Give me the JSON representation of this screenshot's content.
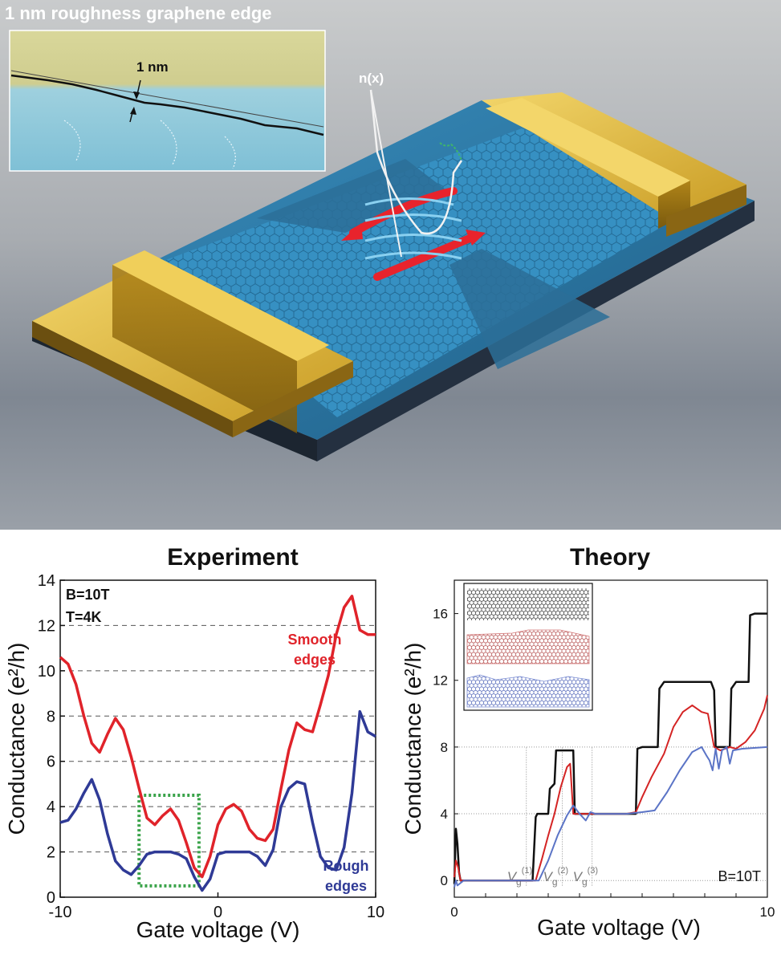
{
  "figure": {
    "inset_title": "1 nm roughness graphene edge",
    "inset_scale_label": "1 nm",
    "density_label": "n(x)"
  },
  "colors": {
    "smooth": "#e0232a",
    "rough": "#2f3a96",
    "theory_black": "#111111",
    "theory_red": "#d42424",
    "theory_blue": "#5b74c6",
    "gold": "#d9b63a",
    "graphene": "#2a7fae",
    "box_green": "#3aa34a"
  },
  "chart_data": [
    {
      "type": "line",
      "title": "Experiment",
      "xlabel": "Gate voltage (V)",
      "ylabel": "Conductance (e²/h)",
      "xlim": [
        -10,
        10
      ],
      "ylim": [
        0,
        14
      ],
      "x_ticks": [
        "-10",
        "0",
        "10"
      ],
      "y_ticks": [
        "0",
        "2",
        "4",
        "6",
        "8",
        "10",
        "12",
        "14"
      ],
      "grid": "dashed horizontal",
      "annotations": [
        "B=10T",
        "T=4K"
      ],
      "series": [
        {
          "name": "Smooth edges",
          "label_lines": [
            "Smooth",
            "edges"
          ],
          "x": [
            -10,
            -9.5,
            -9,
            -8.5,
            -8,
            -7.5,
            -7,
            -6.5,
            -6,
            -5.5,
            -5,
            -4.5,
            -4,
            -3.5,
            -3,
            -2.5,
            -2,
            -1.5,
            -1,
            -0.5,
            0,
            0.5,
            1,
            1.5,
            2,
            2.5,
            3,
            3.5,
            4,
            4.5,
            5,
            5.5,
            6,
            6.5,
            7,
            7.5,
            8,
            8.5,
            9,
            9.5,
            10
          ],
          "values": [
            10.6,
            10.3,
            9.4,
            8.0,
            6.8,
            6.4,
            7.2,
            7.9,
            7.4,
            6.2,
            4.8,
            3.5,
            3.2,
            3.6,
            3.9,
            3.4,
            2.4,
            1.3,
            0.9,
            1.8,
            3.2,
            3.9,
            4.1,
            3.8,
            3.0,
            2.6,
            2.5,
            3.0,
            4.8,
            6.5,
            7.7,
            7.4,
            7.3,
            8.5,
            9.8,
            11.6,
            12.8,
            13.3,
            11.8,
            11.6,
            11.6
          ]
        },
        {
          "name": "Rough edges",
          "label_lines": [
            "Rough",
            "edges"
          ],
          "x": [
            -10,
            -9.5,
            -9,
            -8.5,
            -8,
            -7.5,
            -7,
            -6.5,
            -6,
            -5.5,
            -5,
            -4.5,
            -4,
            -3.5,
            -3,
            -2.5,
            -2,
            -1.5,
            -1,
            -0.5,
            0,
            0.5,
            1,
            1.5,
            2,
            2.5,
            3,
            3.5,
            4,
            4.5,
            5,
            5.5,
            6,
            6.5,
            7,
            7.5,
            8,
            8.5,
            9,
            9.5,
            10
          ],
          "values": [
            3.3,
            3.4,
            3.9,
            4.6,
            5.2,
            4.3,
            2.8,
            1.6,
            1.2,
            1.0,
            1.4,
            1.9,
            2.0,
            2.0,
            2.0,
            1.9,
            1.7,
            0.9,
            0.3,
            0.8,
            1.9,
            2.0,
            2.0,
            2.0,
            2.0,
            1.8,
            1.4,
            2.1,
            4.0,
            4.8,
            5.1,
            5.0,
            3.3,
            1.8,
            1.3,
            1.2,
            2.2,
            4.6,
            8.2,
            7.3,
            7.1
          ]
        }
      ],
      "highlight_box": {
        "x": [
          -5.0,
          -1.2
        ],
        "y": [
          0.5,
          4.5
        ]
      }
    },
    {
      "type": "line",
      "title": "Theory",
      "xlabel": "Gate voltage (V)",
      "ylabel": "Conductance (e²/h)",
      "xlim": [
        0,
        10
      ],
      "ylim": [
        -1,
        18
      ],
      "x_ticks": [
        "0",
        "10"
      ],
      "y_ticks": [
        "0",
        "4",
        "8",
        "12",
        "16"
      ],
      "grid": "dotted horizontal at 0, 4, 8",
      "annotations": [
        "B=10T"
      ],
      "vlines": [
        {
          "label": "V",
          "sub": "g",
          "sup": "(1)",
          "x": 2.3
        },
        {
          "label": "V",
          "sub": "g",
          "sup": "(2)",
          "x": 3.45
        },
        {
          "label": "V",
          "sub": "g",
          "sup": "(3)",
          "x": 4.4
        }
      ],
      "series": [
        {
          "color_key": "theory_black",
          "x": [
            0,
            0.05,
            0.1,
            0.15,
            0.2,
            0.3,
            2.5,
            2.6,
            2.65,
            3.0,
            3.05,
            3.2,
            3.25,
            3.8,
            3.85,
            4.0,
            5.8,
            5.85,
            6.0,
            6.5,
            6.55,
            6.7,
            7.3,
            7.35,
            8.2,
            8.3,
            8.35,
            8.8,
            8.85,
            9.0,
            9.4,
            9.45,
            9.6,
            10
          ],
          "values": [
            -0.2,
            3.1,
            2.2,
            0.5,
            0.0,
            0.0,
            0.0,
            3.8,
            4.0,
            4.0,
            5.5,
            5.8,
            7.8,
            7.8,
            4.0,
            4.0,
            4.0,
            7.9,
            8.0,
            8.0,
            11.5,
            11.9,
            11.9,
            11.9,
            11.9,
            11.4,
            8.0,
            8.0,
            11.5,
            11.9,
            11.9,
            15.9,
            16.0,
            16.0
          ]
        },
        {
          "color_key": "theory_red",
          "x": [
            0,
            0.05,
            0.12,
            0.2,
            0.3,
            2.6,
            2.8,
            3.0,
            3.2,
            3.4,
            3.6,
            3.7,
            3.75,
            3.8,
            4.0,
            5.5,
            5.8,
            6.0,
            6.3,
            6.7,
            7.0,
            7.3,
            7.6,
            7.9,
            8.1,
            8.3,
            8.5,
            8.8,
            9.0,
            9.3,
            9.6,
            9.9,
            10
          ],
          "values": [
            0.2,
            1.2,
            0.8,
            0.0,
            0.0,
            0.0,
            1.3,
            2.7,
            4.0,
            5.6,
            6.8,
            7.0,
            5.5,
            4.0,
            4.0,
            4.0,
            4.1,
            5.0,
            6.2,
            7.6,
            9.2,
            10.1,
            10.5,
            10.1,
            10.0,
            8.0,
            7.8,
            8.0,
            7.9,
            8.3,
            9.0,
            10.3,
            11.1
          ]
        },
        {
          "color_key": "theory_blue",
          "x": [
            0,
            0.05,
            0.1,
            0.3,
            2.7,
            3.0,
            3.3,
            3.6,
            3.8,
            4.0,
            4.2,
            4.35,
            4.5,
            5.5,
            6.0,
            6.4,
            6.8,
            7.2,
            7.6,
            7.9,
            8.05,
            8.15,
            8.25,
            8.35,
            8.45,
            8.55,
            8.7,
            8.8,
            8.9,
            9.2,
            10
          ],
          "values": [
            -0.4,
            0.0,
            -0.3,
            0.0,
            0.0,
            1.2,
            2.7,
            3.9,
            4.5,
            4.0,
            3.6,
            4.1,
            4.0,
            4.0,
            4.1,
            4.2,
            5.3,
            6.6,
            7.7,
            8.0,
            7.5,
            7.2,
            6.6,
            7.9,
            6.7,
            7.8,
            8.0,
            7.0,
            7.8,
            7.9,
            8.0
          ]
        }
      ]
    }
  ]
}
